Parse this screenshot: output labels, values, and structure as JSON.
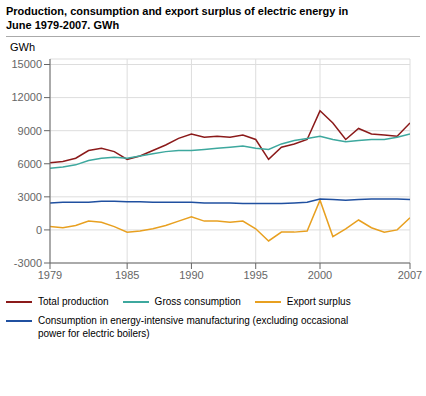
{
  "chart_data": {
    "type": "line",
    "title": "Production, consumption and export surplus of electric energy in\nJune 1979-2007. GWh",
    "ylabel": "GWh",
    "x": [
      1979,
      1980,
      1981,
      1982,
      1983,
      1984,
      1985,
      1986,
      1987,
      1988,
      1989,
      1990,
      1991,
      1992,
      1993,
      1994,
      1995,
      1996,
      1997,
      1998,
      1999,
      2000,
      2001,
      2002,
      2003,
      2004,
      2005,
      2006,
      2007
    ],
    "series": [
      {
        "name": "Total production",
        "color": "#8B1A1A",
        "values": [
          6100,
          6200,
          6500,
          7200,
          7400,
          7100,
          6400,
          6700,
          7200,
          7700,
          8300,
          8700,
          8400,
          8500,
          8400,
          8600,
          8200,
          6400,
          7500,
          7800,
          8200,
          10800,
          9700,
          8200,
          9200,
          8700,
          8600,
          8500,
          9700
        ]
      },
      {
        "name": "Gross consumption",
        "color": "#3DA89E",
        "values": [
          5600,
          5700,
          5900,
          6300,
          6500,
          6600,
          6500,
          6700,
          6900,
          7100,
          7200,
          7200,
          7300,
          7400,
          7500,
          7600,
          7400,
          7300,
          7800,
          8100,
          8300,
          8500,
          8200,
          8000,
          8100,
          8200,
          8200,
          8400,
          8700
        ]
      },
      {
        "name": "Export surplus",
        "color": "#E8A020",
        "values": [
          300,
          200,
          400,
          800,
          700,
          300,
          -200,
          -100,
          100,
          400,
          800,
          1200,
          800,
          800,
          700,
          800,
          100,
          -1000,
          -200,
          -200,
          -100,
          2700,
          -600,
          100,
          900,
          200,
          -200,
          0,
          1100
        ]
      },
      {
        "name": "Consumption in energy-intensive manufacturing (excluding occasional\npower for electric boilers)",
        "color": "#2050A0",
        "values": [
          2450,
          2500,
          2500,
          2500,
          2600,
          2600,
          2550,
          2550,
          2500,
          2500,
          2500,
          2500,
          2450,
          2450,
          2450,
          2400,
          2400,
          2400,
          2400,
          2450,
          2500,
          2800,
          2750,
          2700,
          2750,
          2800,
          2800,
          2800,
          2750
        ]
      }
    ],
    "xlim": [
      1979,
      2007
    ],
    "xticks": [
      1979,
      1985,
      1990,
      1995,
      2000,
      2007
    ],
    "ylim": [
      -3000,
      15500
    ],
    "yticks": [
      -3000,
      0,
      3000,
      6000,
      9000,
      12000,
      15000
    ],
    "grid": true
  }
}
